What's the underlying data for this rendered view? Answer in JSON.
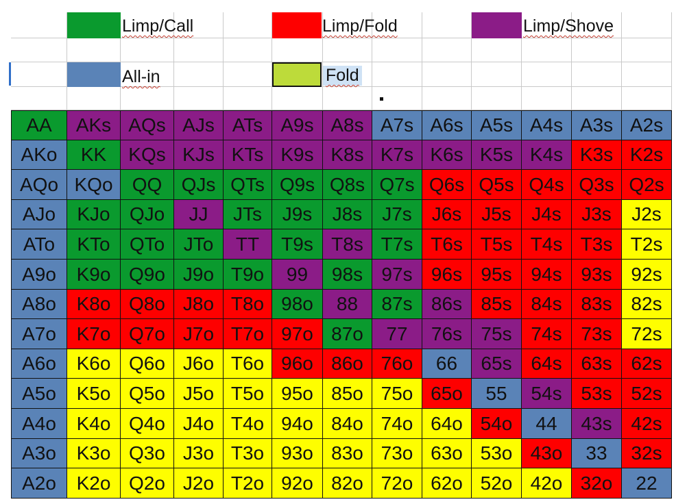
{
  "legend": [
    {
      "label": "Limp/Call",
      "color": "#0a9a2e"
    },
    {
      "label": "Limp/Fold",
      "color": "#fe0000"
    },
    {
      "label": "Limp/Shove",
      "color": "#8b1c87"
    },
    {
      "label": "All-in",
      "color": "#5a83b7"
    },
    {
      "label": "Fold",
      "color": "#bddb3a"
    }
  ],
  "colors": {
    "G": "#0a9a2e",
    "R": "#fe0000",
    "P": "#8b1c87",
    "B": "#5a83b7",
    "Y": "#fefe00"
  },
  "grid": {
    "rows": [
      [
        "AA",
        "AKs",
        "AQs",
        "AJs",
        "ATs",
        "A9s",
        "A8s",
        "A7s",
        "A6s",
        "A5s",
        "A4s",
        "A3s",
        "A2s"
      ],
      [
        "AKo",
        "KK",
        "KQs",
        "KJs",
        "KTs",
        "K9s",
        "K8s",
        "K7s",
        "K6s",
        "K5s",
        "K4s",
        "K3s",
        "K2s"
      ],
      [
        "AQo",
        "KQo",
        "QQ",
        "QJs",
        "QTs",
        "Q9s",
        "Q8s",
        "Q7s",
        "Q6s",
        "Q5s",
        "Q4s",
        "Q3s",
        "Q2s"
      ],
      [
        "AJo",
        "KJo",
        "QJo",
        "JJ",
        "JTs",
        "J9s",
        "J8s",
        "J7s",
        "J6s",
        "J5s",
        "J4s",
        "J3s",
        "J2s"
      ],
      [
        "ATo",
        "KTo",
        "QTo",
        "JTo",
        "TT",
        "T9s",
        "T8s",
        "T7s",
        "T6s",
        "T5s",
        "T4s",
        "T3s",
        "T2s"
      ],
      [
        "A9o",
        "K9o",
        "Q9o",
        "J9o",
        "T9o",
        "99",
        "98s",
        "97s",
        "96s",
        "95s",
        "94s",
        "93s",
        "92s"
      ],
      [
        "A8o",
        "K8o",
        "Q8o",
        "J8o",
        "T8o",
        "98o",
        "88",
        "87s",
        "86s",
        "85s",
        "84s",
        "83s",
        "82s"
      ],
      [
        "A7o",
        "K7o",
        "Q7o",
        "J7o",
        "T7o",
        "97o",
        "87o",
        "77",
        "76s",
        "75s",
        "74s",
        "73s",
        "72s"
      ],
      [
        "A6o",
        "K6o",
        "Q6o",
        "J6o",
        "T6o",
        "96o",
        "86o",
        "76o",
        "66",
        "65s",
        "64s",
        "63s",
        "62s"
      ],
      [
        "A5o",
        "K5o",
        "Q5o",
        "J5o",
        "T5o",
        "95o",
        "85o",
        "75o",
        "65o",
        "55",
        "54s",
        "53s",
        "52s"
      ],
      [
        "A4o",
        "K4o",
        "Q4o",
        "J4o",
        "T4o",
        "94o",
        "84o",
        "74o",
        "64o",
        "54o",
        "44",
        "43s",
        "42s"
      ],
      [
        "A3o",
        "K3o",
        "Q3o",
        "J3o",
        "T3o",
        "93o",
        "83o",
        "73o",
        "63o",
        "53o",
        "43o",
        "33",
        "32s"
      ],
      [
        "A2o",
        "K2o",
        "Q2o",
        "J2o",
        "T2o",
        "92o",
        "82o",
        "72o",
        "62o",
        "52o",
        "42o",
        "32o",
        "22"
      ]
    ],
    "actions": [
      "GPPPPPPBBBBBB",
      "BGPPPPPPPPPRR",
      "BBGGGGGGRRRRR",
      "BGGPGGGGRRRRY",
      "BGGGPGPGRRRRY",
      "BGGGGPGPRRRRY",
      "BRRRRGPGPRRRY",
      "BRRRRRGPPPRRY",
      "BYYYYRRRBPRRR",
      "BYYYYYYYRBPRR",
      "BYYYYYYYYRBPR",
      "BYYYYYYYYYRBR",
      "BYYYYYYYYYYRB"
    ]
  }
}
